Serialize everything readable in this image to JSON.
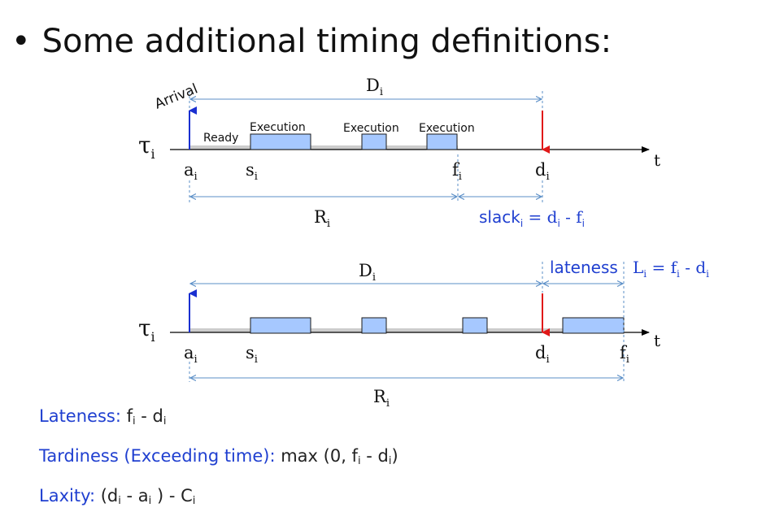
{
  "heading": {
    "bullet": "•",
    "text": "Some additional timing definitions:"
  },
  "colors": {
    "axis": "#000000",
    "track": "#cccccc",
    "exec_fill": "#a6c8ff",
    "exec_stroke": "#1a1a1a",
    "dim": "#5b8fc7",
    "arrival": "#1a2fd0",
    "deadline": "#e01818",
    "blue_text": "#1f3fd0"
  },
  "diagram1": {
    "arrival_label": "Arrival",
    "ready_label": "Ready",
    "exec_labels": [
      "Execution",
      "Execution",
      "Execution"
    ],
    "task": {
      "main": "τ",
      "sub": "i"
    },
    "time_label": "t",
    "marks": [
      {
        "main": "a",
        "sub": "i"
      },
      {
        "main": "s",
        "sub": "i"
      },
      {
        "main": "f",
        "sub": "i"
      },
      {
        "main": "d",
        "sub": "i"
      }
    ],
    "D": {
      "main": "D",
      "sub": "i"
    },
    "R": {
      "main": "R",
      "sub": "i"
    },
    "slack": {
      "word": "slack",
      "sub": "i",
      "eq": " = d",
      "sub2": "i",
      "minus": " - f",
      "sub3": "i"
    }
  },
  "diagram2": {
    "task": {
      "main": "τ",
      "sub": "i"
    },
    "time_label": "t",
    "marks": [
      {
        "main": "a",
        "sub": "i"
      },
      {
        "main": "s",
        "sub": "i"
      },
      {
        "main": "d",
        "sub": "i"
      },
      {
        "main": "f",
        "sub": "i"
      }
    ],
    "D": {
      "main": "D",
      "sub": "i"
    },
    "R": {
      "main": "R",
      "sub": "i"
    },
    "lateness_word": "lateness",
    "lateness_formula": {
      "L": "L",
      "sub": "i",
      "eq": " = f",
      "sub2": "i",
      "minus": " - d",
      "sub3": "i"
    }
  },
  "definitions": [
    {
      "label": "Lateness:",
      "pre": "  f",
      "sub1": "i",
      "mid": " - d",
      "sub2": "i",
      "post": ""
    },
    {
      "label": "Tardiness (Exceeding time):",
      "pre": " max (0, f",
      "sub1": "i",
      "mid": " - d",
      "sub2": "i",
      "post": ")"
    },
    {
      "label": "Laxity:",
      "pre": " (d",
      "sub1": "i",
      "mid": "  -  a",
      "sub2": "i",
      "post": " ) - C",
      "sub3": "i"
    }
  ]
}
